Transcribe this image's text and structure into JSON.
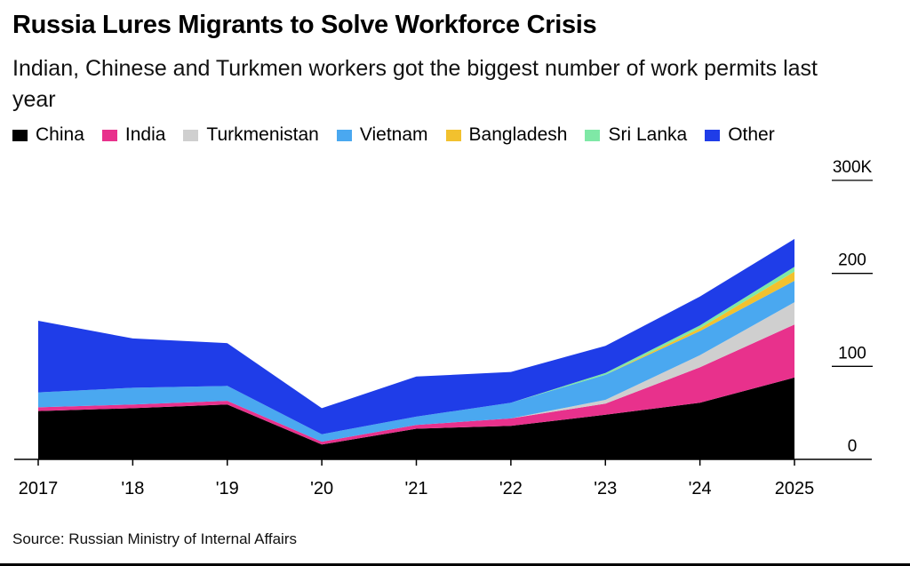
{
  "title": "Russia Lures Migrants to Solve Workforce Crisis",
  "subtitle": "Indian, Chinese and Turkmen workers got the biggest number of work permits last year",
  "source": "Source: Russian Ministry of Internal Affairs",
  "colors": {
    "China": "#000000",
    "India": "#e8318c",
    "Turkmenistan": "#cfcfcf",
    "Vietnam": "#4aa8f0",
    "Bangladesh": "#f2c12e",
    "Sri Lanka": "#7fe8a6",
    "Other": "#1f3de8"
  },
  "chart_data": {
    "type": "area",
    "stacked": true,
    "x": [
      2017,
      2018,
      2019,
      2020,
      2021,
      2022,
      2023,
      2024,
      2025
    ],
    "x_tick_labels": [
      "2017",
      "'18",
      "'19",
      "'20",
      "'21",
      "'22",
      "'23",
      "'24",
      "2025"
    ],
    "y_tick_labels": [
      "0",
      "100",
      "200",
      "300K"
    ],
    "y_ticks": [
      0,
      100,
      200,
      300
    ],
    "ylim": [
      0,
      300
    ],
    "unit": "thousand",
    "legend_position": "top",
    "series": [
      {
        "name": "China",
        "values": [
          52,
          55,
          59,
          16,
          33,
          36,
          48,
          61,
          88
        ]
      },
      {
        "name": "India",
        "values": [
          4,
          4,
          4,
          3,
          4,
          8,
          12,
          38,
          57
        ]
      },
      {
        "name": "Turkmenistan",
        "values": [
          0,
          0,
          0,
          0,
          0,
          0,
          4,
          13,
          24
        ]
      },
      {
        "name": "Vietnam",
        "values": [
          16,
          18,
          16,
          8,
          9,
          17,
          27,
          26,
          23
        ]
      },
      {
        "name": "Bangladesh",
        "values": [
          0,
          0,
          0,
          0,
          0,
          0,
          0,
          3,
          10
        ]
      },
      {
        "name": "Sri Lanka",
        "values": [
          0,
          0,
          0,
          0,
          0,
          0,
          2,
          3,
          5
        ]
      },
      {
        "name": "Other",
        "values": [
          77,
          53,
          46,
          28,
          43,
          33,
          29,
          31,
          30
        ]
      }
    ]
  }
}
